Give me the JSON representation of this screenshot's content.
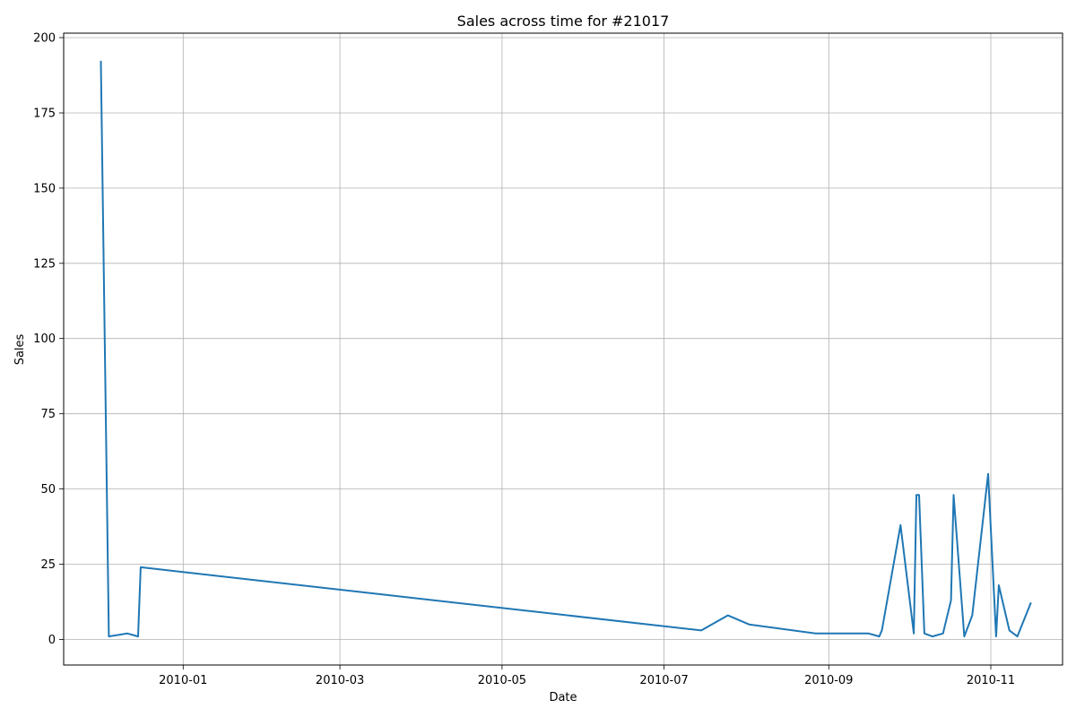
{
  "chart_data": {
    "type": "line",
    "title": "Sales across time for #21017",
    "xlabel": "Date",
    "ylabel": "Sales",
    "xlim": [
      "2009-11-17",
      "2010-11-28"
    ],
    "ylim": [
      -8.5,
      201.5
    ],
    "x_ticks": [
      {
        "value": "2010-01-01",
        "label": "2010-01"
      },
      {
        "value": "2010-03-01",
        "label": "2010-03"
      },
      {
        "value": "2010-05-01",
        "label": "2010-05"
      },
      {
        "value": "2010-07-01",
        "label": "2010-07"
      },
      {
        "value": "2010-09-01",
        "label": "2010-09"
      },
      {
        "value": "2010-11-01",
        "label": "2010-11"
      }
    ],
    "y_ticks": [
      0,
      25,
      50,
      75,
      100,
      125,
      150,
      175,
      200
    ],
    "grid": true,
    "line_color": "#1f77b4",
    "series": [
      {
        "points": [
          {
            "x": "2009-12-01",
            "y": 192
          },
          {
            "x": "2009-12-04",
            "y": 1
          },
          {
            "x": "2009-12-11",
            "y": 2
          },
          {
            "x": "2009-12-15",
            "y": 1
          },
          {
            "x": "2009-12-16",
            "y": 24
          },
          {
            "x": "2010-07-15",
            "y": 3
          },
          {
            "x": "2010-07-25",
            "y": 8
          },
          {
            "x": "2010-08-02",
            "y": 5
          },
          {
            "x": "2010-08-27",
            "y": 2
          },
          {
            "x": "2010-09-16",
            "y": 2
          },
          {
            "x": "2010-09-20",
            "y": 1
          },
          {
            "x": "2010-09-21",
            "y": 3
          },
          {
            "x": "2010-09-28",
            "y": 38
          },
          {
            "x": "2010-10-03",
            "y": 2
          },
          {
            "x": "2010-10-04",
            "y": 48
          },
          {
            "x": "2010-10-05",
            "y": 48
          },
          {
            "x": "2010-10-07",
            "y": 2
          },
          {
            "x": "2010-10-10",
            "y": 1
          },
          {
            "x": "2010-10-14",
            "y": 2
          },
          {
            "x": "2010-10-17",
            "y": 13
          },
          {
            "x": "2010-10-18",
            "y": 48
          },
          {
            "x": "2010-10-22",
            "y": 1
          },
          {
            "x": "2010-10-25",
            "y": 8
          },
          {
            "x": "2010-10-31",
            "y": 55
          },
          {
            "x": "2010-11-03",
            "y": 1
          },
          {
            "x": "2010-11-04",
            "y": 18
          },
          {
            "x": "2010-11-08",
            "y": 3
          },
          {
            "x": "2010-11-11",
            "y": 1
          },
          {
            "x": "2010-11-16",
            "y": 12
          }
        ]
      }
    ]
  }
}
